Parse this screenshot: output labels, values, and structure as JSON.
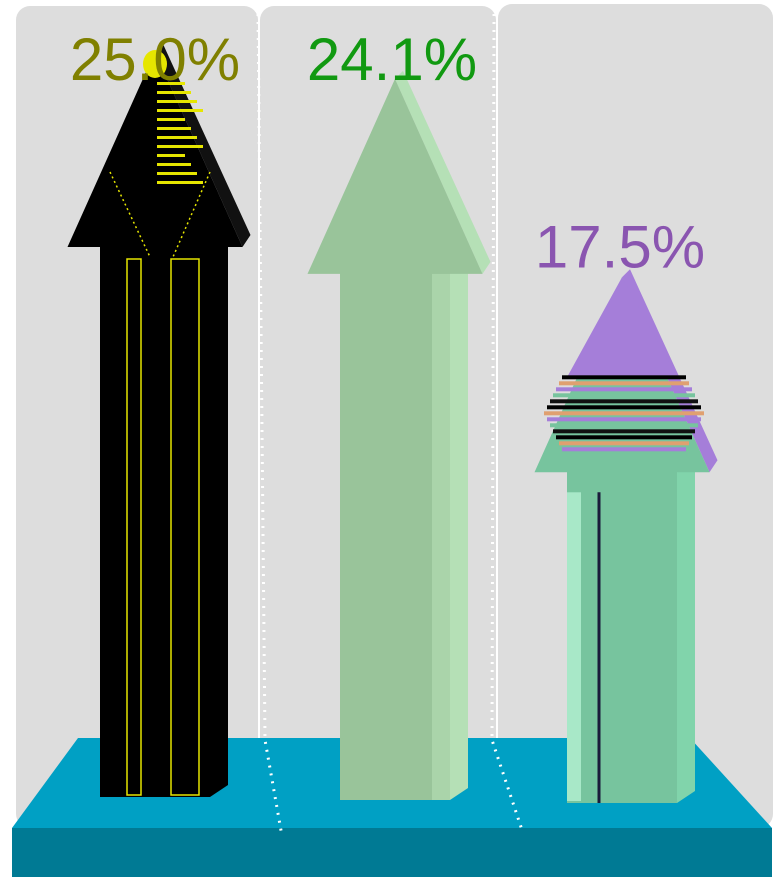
{
  "chart_data": {
    "type": "bar",
    "style": "3d-arrows",
    "series": [
      {
        "label": "25.0%",
        "value": 25.0,
        "color": "#808000",
        "arrow_color": "#000000",
        "accent": "#e6e600"
      },
      {
        "label": "24.1%",
        "value": 24.1,
        "color": "#119911",
        "arrow_color": "#99c49a",
        "accent": "#b5e0b6"
      },
      {
        "label": "17.5%",
        "value": 17.5,
        "color": "#8a55b0",
        "arrow_color": "#77c49e",
        "accent": "#a57ed9"
      }
    ],
    "ylim": [
      0,
      25.0
    ],
    "colors": {
      "panel": "#dddddd",
      "base_top": "#00a0c4",
      "base_front": "#007a94",
      "separator": "#ffffff"
    }
  }
}
